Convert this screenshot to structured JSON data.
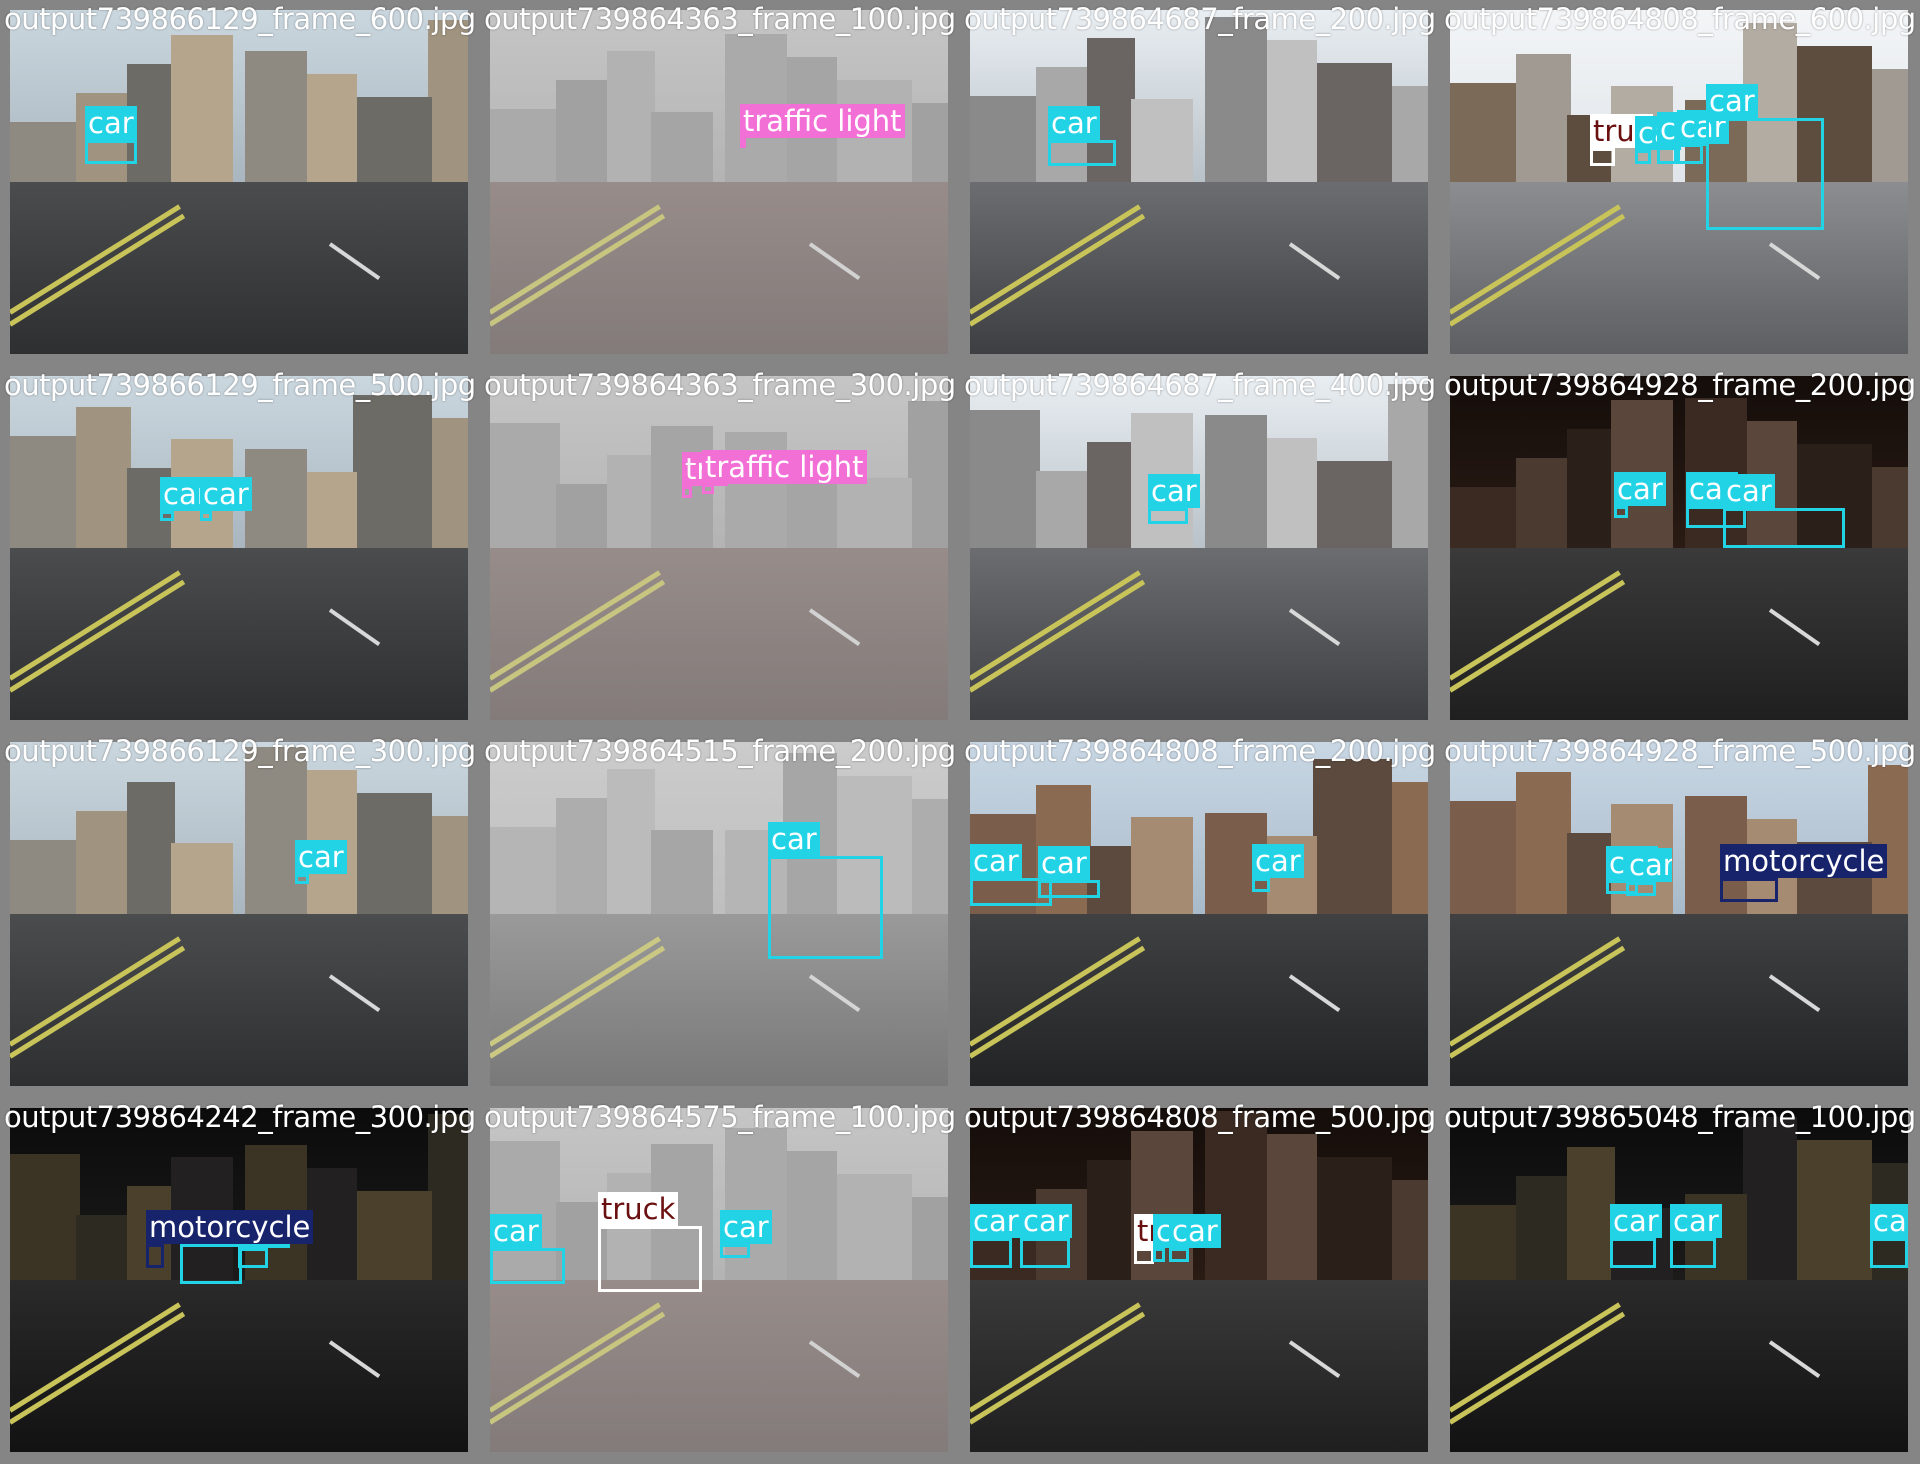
{
  "classes": {
    "car": {
      "border": "#22d3e6",
      "label_bg": "#22d3e6",
      "label_fg": "#ffffff"
    },
    "traffic light": {
      "border": "#f26fd6",
      "label_bg": "#f26fd6",
      "label_fg": "#ffffff"
    },
    "truck": {
      "border": "#ffffff",
      "label_bg": "#ffffff",
      "label_fg": "#6b1010"
    },
    "motorcycle": {
      "border": "#17236b",
      "label_bg": "#17236b",
      "label_fg": "#ffffff"
    }
  },
  "tiles": [
    {
      "filename": "output739866129_frame_600.jpg",
      "scene": "day",
      "detections": [
        {
          "label": "car"
        }
      ]
    },
    {
      "filename": "output739864363_frame_100.jpg",
      "scene": "fog",
      "detections": [
        {
          "label": "traffic light"
        }
      ]
    },
    {
      "filename": "output739864687_frame_200.jpg",
      "scene": "city",
      "detections": [
        {
          "label": "car"
        }
      ]
    },
    {
      "filename": "output739864808_frame_600.jpg",
      "scene": "bright",
      "detections": [
        {
          "label": "truck"
        },
        {
          "label": "car"
        },
        {
          "label": "car"
        },
        {
          "label": "car"
        },
        {
          "label": "car"
        }
      ]
    },
    {
      "filename": "output739866129_frame_500.jpg",
      "scene": "day",
      "detections": [
        {
          "label": "car"
        },
        {
          "label": "car"
        }
      ]
    },
    {
      "filename": "output739864363_frame_300.jpg",
      "scene": "fog",
      "detections": [
        {
          "label": "traffic light"
        },
        {
          "label": "traffic light"
        }
      ]
    },
    {
      "filename": "output739864687_frame_400.jpg",
      "scene": "city",
      "detections": [
        {
          "label": "car"
        }
      ]
    },
    {
      "filename": "output739864928_frame_200.jpg",
      "scene": "underpass",
      "detections": [
        {
          "label": "car"
        },
        {
          "label": "car"
        },
        {
          "label": "car"
        }
      ]
    },
    {
      "filename": "output739866129_frame_300.jpg",
      "scene": "day",
      "detections": [
        {
          "label": "car"
        }
      ]
    },
    {
      "filename": "output739864515_frame_200.jpg",
      "scene": "rainfog",
      "detections": [
        {
          "label": "car"
        }
      ]
    },
    {
      "filename": "output739864808_frame_200.jpg",
      "scene": "brick",
      "detections": [
        {
          "label": "car"
        },
        {
          "label": "car"
        },
        {
          "label": "car"
        }
      ]
    },
    {
      "filename": "output739864928_frame_500.jpg",
      "scene": "brick",
      "detections": [
        {
          "label": "car"
        },
        {
          "label": "car"
        },
        {
          "label": "motorcycle"
        }
      ]
    },
    {
      "filename": "output739864242_frame_300.jpg",
      "scene": "night",
      "detections": [
        {
          "label": "car"
        },
        {
          "label": "car"
        },
        {
          "label": "motorcycle"
        }
      ]
    },
    {
      "filename": "output739864575_frame_100.jpg",
      "scene": "fog",
      "detections": [
        {
          "label": "car"
        },
        {
          "label": "truck"
        },
        {
          "label": "car"
        }
      ]
    },
    {
      "filename": "output739864808_frame_500.jpg",
      "scene": "underpass",
      "detections": [
        {
          "label": "car"
        },
        {
          "label": "car"
        },
        {
          "label": "truck"
        },
        {
          "label": "car"
        },
        {
          "label": "car"
        }
      ]
    },
    {
      "filename": "output739865048_frame_100.jpg",
      "scene": "night",
      "detections": [
        {
          "label": "car"
        },
        {
          "label": "car"
        },
        {
          "label": "car"
        }
      ]
    }
  ]
}
